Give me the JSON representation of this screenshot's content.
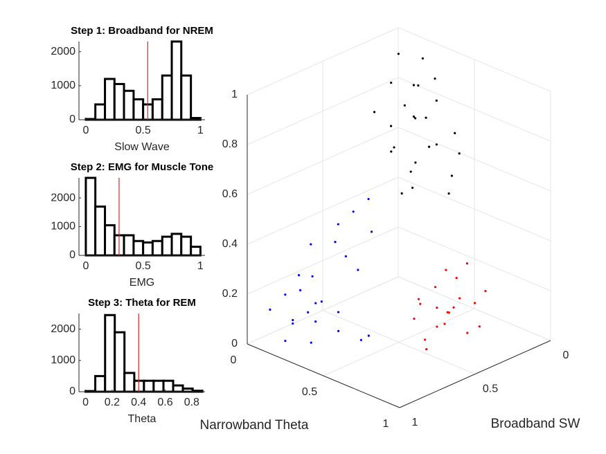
{
  "chart_data": [
    {
      "type": "histogram",
      "title": "Step 1: Broadband for NREM",
      "xlabel": "Slow Wave",
      "bins": [
        0,
        0.083,
        0.167,
        0.25,
        0.333,
        0.417,
        0.5,
        0.583,
        0.667,
        0.75,
        0.833,
        0.917,
        1
      ],
      "counts": [
        20,
        450,
        1200,
        1050,
        850,
        600,
        450,
        600,
        1300,
        2300,
        1300,
        50
      ],
      "xlim": [
        -0.06,
        1.04
      ],
      "ylim": [
        0,
        2300
      ],
      "xticks": [
        0,
        0.5,
        1
      ],
      "yticks": [
        0,
        1000,
        2000
      ],
      "threshold": 0.54,
      "threshold_color": "#e02020",
      "color": "#000000"
    },
    {
      "type": "histogram",
      "title": "Step 2: EMG for Muscle Tone",
      "xlabel": "EMG",
      "bins": [
        0,
        0.083,
        0.167,
        0.25,
        0.333,
        0.417,
        0.5,
        0.583,
        0.667,
        0.75,
        0.833,
        0.917,
        1
      ],
      "counts": [
        2700,
        1700,
        1050,
        700,
        700,
        500,
        450,
        500,
        650,
        750,
        650,
        300
      ],
      "xlim": [
        -0.06,
        1.04
      ],
      "ylim": [
        0,
        2700
      ],
      "xticks": [
        0,
        0.5,
        1
      ],
      "yticks": [
        0,
        1000,
        2000
      ],
      "threshold": 0.29,
      "threshold_color": "#e02020",
      "color": "#000000"
    },
    {
      "type": "histogram",
      "title": "Step 3: Theta for REM",
      "xlabel": "Theta",
      "bins": [
        0,
        0.073,
        0.147,
        0.22,
        0.293,
        0.367,
        0.44,
        0.513,
        0.587,
        0.66,
        0.733,
        0.807,
        0.88
      ],
      "counts": [
        20,
        500,
        2450,
        1900,
        600,
        350,
        350,
        350,
        350,
        200,
        100,
        30
      ],
      "xlim": [
        -0.05,
        0.9
      ],
      "ylim": [
        0,
        2500
      ],
      "xticks": [
        0,
        0.2,
        0.4,
        0.6,
        0.8
      ],
      "yticks": [
        0,
        1000,
        2000
      ],
      "threshold": 0.4,
      "threshold_color": "#e02020",
      "color": "#000000"
    },
    {
      "type": "scatter3d",
      "xlabel": "Narrowband Theta",
      "ylabel": "Broadband SW",
      "xlim": [
        0,
        1
      ],
      "ylim": [
        0,
        1
      ],
      "zlim": [
        0,
        1
      ],
      "xticks": [
        0,
        0.5,
        1
      ],
      "yticks": [
        0,
        0.5,
        1
      ],
      "zticks": [
        0,
        0.2,
        0.4,
        0.6,
        0.8,
        1
      ],
      "grid": true,
      "series": [
        {
          "color": "#0000ff",
          "x": [
            0.15,
            0.2,
            0.25,
            0.1,
            0.3,
            0.18,
            0.22,
            0.12,
            0.28,
            0.35,
            0.4,
            0.45,
            0.3,
            0.25,
            0.35,
            0.2,
            0.15,
            0.32,
            0.38,
            0.42,
            0.27,
            0.17,
            0.5,
            0.33,
            0.23
          ],
          "y": [
            0.85,
            0.9,
            0.8,
            0.95,
            0.85,
            0.75,
            0.88,
            0.7,
            0.7,
            0.75,
            0.8,
            0.7,
            0.6,
            0.65,
            0.55,
            0.95,
            0.8,
            0.9,
            0.65,
            0.6,
            0.78,
            0.92,
            0.7,
            0.68,
            0.83
          ],
          "z": [
            0.08,
            0.12,
            0.1,
            0.15,
            0.2,
            0.25,
            0.3,
            0.35,
            0.4,
            0.15,
            0.1,
            0.05,
            0.5,
            0.45,
            0.55,
            0.05,
            0.2,
            0.06,
            0.3,
            0.45,
            0.18,
            0.22,
            0.08,
            0.35,
            0.14
          ]
        },
        {
          "color": "#000000",
          "x": [
            0.3,
            0.35,
            0.4,
            0.25,
            0.45,
            0.5,
            0.3,
            0.2,
            0.38,
            0.42,
            0.55,
            0.28,
            0.33,
            0.48,
            0.36,
            0.22,
            0.44,
            0.52,
            0.31,
            0.4,
            0.26,
            0.47,
            0.35,
            0.58,
            0.29
          ],
          "y": [
            0.2,
            0.25,
            0.15,
            0.3,
            0.2,
            0.1,
            0.35,
            0.2,
            0.3,
            0.4,
            0.2,
            0.15,
            0.22,
            0.28,
            0.12,
            0.38,
            0.33,
            0.15,
            0.27,
            0.22,
            0.1,
            0.38,
            0.4,
            0.25,
            0.32
          ],
          "z": [
            0.9,
            0.8,
            0.85,
            0.75,
            0.7,
            0.65,
            0.95,
            1.0,
            0.6,
            0.55,
            0.6,
            0.88,
            0.78,
            0.72,
            0.92,
            0.82,
            0.66,
            0.75,
            0.84,
            0.8,
            0.97,
            0.58,
            0.7,
            0.55,
            0.68
          ]
        },
        {
          "color": "#ff0000",
          "x": [
            0.65,
            0.7,
            0.75,
            0.6,
            0.8,
            0.68,
            0.72,
            0.85,
            0.62,
            0.78,
            0.7,
            0.58,
            0.88,
            0.66,
            0.74,
            0.82,
            0.64,
            0.76,
            0.69,
            0.8
          ],
          "y": [
            0.4,
            0.45,
            0.35,
            0.5,
            0.3,
            0.3,
            0.55,
            0.4,
            0.38,
            0.48,
            0.25,
            0.45,
            0.35,
            0.52,
            0.42,
            0.25,
            0.33,
            0.58,
            0.36,
            0.44
          ],
          "z": [
            0.15,
            0.1,
            0.2,
            0.12,
            0.18,
            0.25,
            0.08,
            0.1,
            0.22,
            0.14,
            0.3,
            0.18,
            0.12,
            0.2,
            0.16,
            0.22,
            0.28,
            0.06,
            0.13,
            0.2
          ]
        }
      ]
    }
  ]
}
